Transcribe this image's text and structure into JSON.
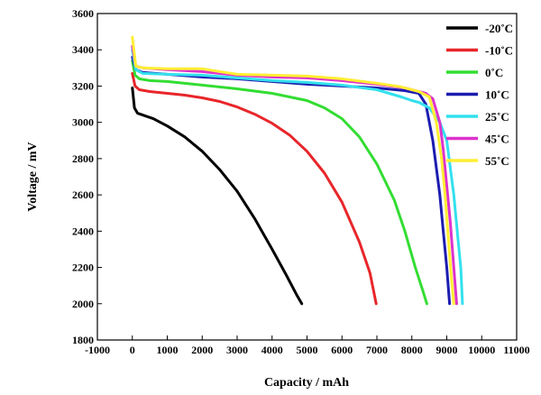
{
  "chart_data": {
    "type": "line",
    "title": "",
    "xlabel": "Capacity / mAh",
    "ylabel": "Voltage / mV",
    "xlim": [
      -1000,
      11000
    ],
    "ylim": [
      1800,
      3600
    ],
    "xticks": [
      -1000,
      0,
      1000,
      2000,
      3000,
      4000,
      5000,
      6000,
      7000,
      8000,
      9000,
      10000,
      11000
    ],
    "yticks": [
      1800,
      2000,
      2200,
      2400,
      2600,
      2800,
      3000,
      3200,
      3400,
      3600
    ],
    "grid": false,
    "legend_position": "top-right",
    "series": [
      {
        "name": "-20˚C",
        "color": "#000000",
        "x": [
          0,
          60,
          150,
          300,
          600,
          1000,
          1500,
          2000,
          2500,
          3000,
          3500,
          4000,
          4400,
          4700,
          4850
        ],
        "y": [
          3190,
          3080,
          3050,
          3040,
          3020,
          2980,
          2920,
          2840,
          2740,
          2620,
          2470,
          2300,
          2160,
          2050,
          2000
        ]
      },
      {
        "name": "-10˚C",
        "color": "#e8262a",
        "x": [
          0,
          80,
          200,
          500,
          1000,
          1500,
          2000,
          2500,
          3000,
          3500,
          4000,
          4500,
          5000,
          5500,
          6000,
          6500,
          6800,
          6980
        ],
        "y": [
          3270,
          3200,
          3180,
          3170,
          3160,
          3150,
          3135,
          3115,
          3085,
          3045,
          2995,
          2930,
          2840,
          2720,
          2560,
          2340,
          2170,
          2000
        ]
      },
      {
        "name": "0˚C",
        "color": "#33dd33",
        "x": [
          0,
          80,
          200,
          500,
          1000,
          2000,
          3000,
          4000,
          5000,
          5500,
          6000,
          6500,
          7000,
          7500,
          7800,
          8100,
          8300,
          8430
        ],
        "y": [
          3340,
          3260,
          3240,
          3230,
          3225,
          3205,
          3185,
          3160,
          3120,
          3080,
          3020,
          2920,
          2770,
          2570,
          2400,
          2200,
          2080,
          2000
        ]
      },
      {
        "name": "10˚C",
        "color": "#1c1cb0",
        "x": [
          0,
          100,
          300,
          1000,
          2000,
          3000,
          4000,
          5000,
          6000,
          7000,
          7800,
          8200,
          8400,
          8600,
          8800,
          8900,
          9000,
          9080
        ],
        "y": [
          3360,
          3290,
          3275,
          3265,
          3250,
          3240,
          3225,
          3210,
          3200,
          3190,
          3175,
          3160,
          3100,
          2900,
          2600,
          2400,
          2200,
          2000
        ]
      },
      {
        "name": "25˚C",
        "color": "#33e0ee",
        "x": [
          0,
          100,
          300,
          1000,
          2000,
          3000,
          4000,
          5000,
          6000,
          7000,
          7700,
          8000,
          8200,
          8500,
          8800,
          9000,
          9100,
          9200,
          9300,
          9400,
          9450
        ],
        "y": [
          3400,
          3290,
          3270,
          3265,
          3260,
          3245,
          3230,
          3220,
          3205,
          3180,
          3140,
          3120,
          3110,
          3080,
          3000,
          2900,
          2750,
          2600,
          2400,
          2200,
          2000
        ]
      },
      {
        "name": "45˚C",
        "color": "#dd33cc",
        "x": [
          0,
          100,
          300,
          1000,
          2000,
          3000,
          4000,
          5000,
          6000,
          7000,
          7800,
          8200,
          8400,
          8600,
          8800,
          8900,
          9000,
          9100,
          9200,
          9280
        ],
        "y": [
          3420,
          3310,
          3300,
          3290,
          3280,
          3260,
          3250,
          3245,
          3230,
          3210,
          3190,
          3170,
          3160,
          3130,
          3000,
          2850,
          2650,
          2450,
          2200,
          2000
        ]
      },
      {
        "name": "55˚C",
        "color": "#ffee33",
        "x": [
          0,
          100,
          300,
          1000,
          2000,
          2500,
          3000,
          4000,
          5000,
          6000,
          7000,
          7700,
          8200,
          8500,
          8700,
          8850,
          8950,
          9050,
          9130,
          9200
        ],
        "y": [
          3470,
          3310,
          3300,
          3295,
          3295,
          3280,
          3265,
          3260,
          3255,
          3240,
          3215,
          3195,
          3170,
          3140,
          3000,
          2800,
          2600,
          2350,
          2150,
          2000
        ]
      }
    ]
  }
}
